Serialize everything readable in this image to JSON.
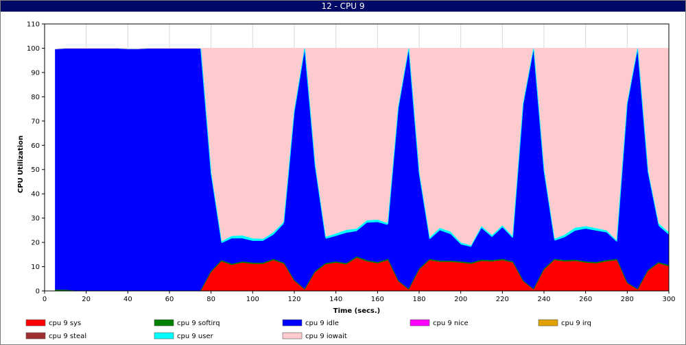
{
  "window": {
    "title": "12 - CPU 9"
  },
  "chart_data": {
    "type": "area",
    "title": "",
    "xlabel": "Time (secs.)",
    "ylabel": "CPU Utilization",
    "xlim": [
      0,
      300
    ],
    "ylim": [
      0,
      110
    ],
    "x_ticks": [
      0,
      20,
      40,
      60,
      80,
      100,
      120,
      140,
      160,
      180,
      200,
      220,
      240,
      260,
      280,
      300
    ],
    "y_ticks": [
      0,
      10,
      20,
      30,
      40,
      50,
      60,
      70,
      80,
      90,
      100,
      110
    ],
    "grid": "vertical lines at x ticks",
    "stacked": true,
    "legend_placement": "bottom",
    "x": [
      5,
      10,
      15,
      20,
      25,
      30,
      35,
      40,
      45,
      50,
      55,
      60,
      65,
      70,
      75,
      80,
      85,
      90,
      95,
      100,
      105,
      110,
      115,
      120,
      125,
      130,
      135,
      140,
      145,
      150,
      155,
      160,
      165,
      170,
      175,
      180,
      185,
      190,
      195,
      200,
      205,
      210,
      215,
      220,
      225,
      230,
      235,
      240,
      245,
      250,
      255,
      260,
      265,
      270,
      275,
      280,
      285,
      290,
      295,
      300
    ],
    "series": [
      {
        "name": "cpu 9 sys",
        "color": "#ff0000",
        "values": [
          0,
          0,
          0,
          0,
          0,
          0,
          0,
          0,
          0,
          0,
          0,
          0,
          0,
          0,
          0,
          7.5,
          12,
          10.5,
          11.5,
          11,
          11,
          12.5,
          11,
          4,
          0.5,
          7.5,
          10.8,
          11.5,
          10.8,
          13.5,
          12,
          11.2,
          12.5,
          3.8,
          0.5,
          8.5,
          12.5,
          11.8,
          11.8,
          11.5,
          11,
          12.2,
          12,
          12.5,
          11.5,
          3.8,
          0.5,
          8.5,
          12.5,
          12,
          12.2,
          11.5,
          11.2,
          12,
          12.5,
          3,
          0.5,
          8,
          11.2,
          10
        ]
      },
      {
        "name": "cpu 9 softirq",
        "color": "#008000",
        "values": [
          0.4,
          0.3,
          0,
          0,
          0,
          0,
          0,
          0,
          0,
          0,
          0,
          0,
          0,
          0,
          0,
          0.5,
          0.5,
          0.5,
          0.5,
          0.5,
          0.5,
          0.5,
          0.5,
          0.3,
          0.2,
          0.5,
          0.5,
          0.5,
          0.5,
          0.5,
          0.5,
          0.5,
          0.5,
          0.3,
          0.2,
          0.5,
          0.5,
          0.5,
          0.5,
          0.5,
          0.5,
          0.5,
          0.5,
          0.5,
          0.5,
          0.3,
          0.2,
          0.5,
          0.5,
          0.5,
          0.5,
          0.5,
          0.5,
          0.5,
          0.5,
          0.3,
          0.2,
          0.5,
          0.5,
          0.5
        ]
      },
      {
        "name": "cpu 9 idle",
        "color": "#0000ff",
        "values": [
          99,
          99.7,
          100,
          100,
          100,
          100,
          100,
          99.5,
          99.5,
          100,
          100,
          100,
          100,
          100,
          100,
          40,
          7,
          10.5,
          9.5,
          9,
          9,
          10,
          16,
          69,
          99,
          43,
          10,
          10.5,
          12.5,
          10.5,
          15.5,
          16.5,
          14,
          71,
          99,
          39,
          8,
          12.5,
          11,
          7,
          6.5,
          13,
          9.5,
          13,
          9.5,
          72.5,
          99,
          40,
          7.5,
          9.5,
          12,
          13.5,
          13,
          11.5,
          7,
          73.5,
          99,
          40,
          15,
          12.5
        ]
      },
      {
        "name": "cpu 9 nice",
        "color": "#ff00ff",
        "values": [
          0,
          0,
          0,
          0,
          0,
          0,
          0,
          0,
          0,
          0,
          0,
          0,
          0,
          0,
          0,
          0,
          0,
          0,
          0,
          0,
          0,
          0,
          0,
          0,
          0,
          0,
          0,
          0,
          0,
          0,
          0,
          0,
          0,
          0,
          0,
          0,
          0,
          0,
          0,
          0,
          0,
          0,
          0,
          0,
          0,
          0,
          0,
          0,
          0,
          0,
          0,
          0,
          0,
          0,
          0,
          0,
          0,
          0,
          0,
          0
        ]
      },
      {
        "name": "cpu 9 irq",
        "color": "#e0a000",
        "values": [
          0,
          0,
          0,
          0,
          0,
          0,
          0,
          0,
          0,
          0,
          0,
          0,
          0,
          0,
          0,
          0,
          0,
          0,
          0,
          0,
          0,
          0,
          0,
          0,
          0,
          0,
          0,
          0,
          0,
          0,
          0,
          0,
          0,
          0,
          0,
          0,
          0,
          0,
          0,
          0,
          0,
          0,
          0,
          0,
          0,
          0,
          0,
          0,
          0,
          0,
          0,
          0,
          0,
          0,
          0,
          0,
          0,
          0,
          0,
          0
        ]
      },
      {
        "name": "cpu 9 steal",
        "color": "#a03030",
        "values": [
          0,
          0,
          0,
          0,
          0,
          0,
          0,
          0,
          0,
          0,
          0,
          0,
          0,
          0,
          0,
          0,
          0,
          0,
          0,
          0,
          0,
          0,
          0,
          0,
          0,
          0,
          0,
          0,
          0,
          0,
          0,
          0,
          0,
          0,
          0,
          0,
          0,
          0,
          0,
          0,
          0,
          0,
          0,
          0,
          0,
          0,
          0,
          0,
          0,
          0,
          0,
          0,
          0,
          0,
          0,
          0,
          0,
          0,
          0,
          0
        ]
      },
      {
        "name": "cpu 9 user",
        "color": "#00ffff",
        "values": [
          0.3,
          0,
          0,
          0,
          0,
          0,
          0,
          0.3,
          0.3,
          0,
          0,
          0,
          0,
          0,
          0,
          0.5,
          0.8,
          1,
          1.2,
          1,
          0.8,
          1,
          0.8,
          0.6,
          0.3,
          0.6,
          0.8,
          1,
          1.2,
          1,
          1,
          1,
          0.8,
          0.5,
          0.3,
          0.6,
          0.8,
          1,
          1,
          0.8,
          0.6,
          0.8,
          0.8,
          0.8,
          0.8,
          0.5,
          0.3,
          0.6,
          0.8,
          1,
          1.2,
          1,
          1,
          0.8,
          0.6,
          0.4,
          0.3,
          0.6,
          1,
          1
        ]
      },
      {
        "name": "cpu 9 iowait",
        "color": "#ffcbcf",
        "values": [
          0,
          0,
          0,
          0,
          0,
          0,
          0,
          0,
          0,
          0,
          0,
          0,
          0,
          0,
          0,
          51.5,
          79.7,
          77.5,
          77.3,
          78.5,
          78.7,
          76,
          71.7,
          26.1,
          0,
          48.4,
          77.9,
          76.5,
          75,
          74.5,
          71,
          70.8,
          72.2,
          24.4,
          0,
          51.4,
          78.2,
          74.2,
          75.7,
          80.2,
          81.4,
          73.5,
          77.2,
          73.2,
          77.7,
          22.9,
          0,
          50.4,
          78.7,
          77,
          74.1,
          73.5,
          74.3,
          75.2,
          79.4,
          22.8,
          0,
          50.9,
          72.3,
          76
        ]
      }
    ]
  }
}
